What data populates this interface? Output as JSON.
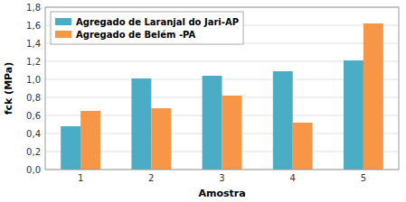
{
  "chart_data": {
    "type": "bar",
    "categories": [
      "1",
      "2",
      "3",
      "4",
      "5"
    ],
    "series": [
      {
        "name": "Agregado de Laranjal do Jari-AP",
        "color": "#4BACC6",
        "values": [
          0.48,
          1.01,
          1.04,
          1.09,
          1.21
        ]
      },
      {
        "name": "Agregado de Belém -PA",
        "color": "#F79646",
        "values": [
          0.65,
          0.68,
          0.82,
          0.52,
          1.62
        ]
      }
    ],
    "xlabel": "Amostra",
    "ylabel": "fck (MPa)",
    "ylim": [
      0.0,
      1.8
    ],
    "yticks": [
      {
        "value": 0.0,
        "label": "0,0"
      },
      {
        "value": 0.2,
        "label": "0,2"
      },
      {
        "value": 0.4,
        "label": "0,4"
      },
      {
        "value": 0.6,
        "label": "0,6"
      },
      {
        "value": 0.8,
        "label": "0,8"
      },
      {
        "value": 1.0,
        "label": "1,0"
      },
      {
        "value": 1.2,
        "label": "1,2"
      },
      {
        "value": 1.4,
        "label": "1,4"
      },
      {
        "value": 1.6,
        "label": "1,6"
      },
      {
        "value": 1.8,
        "label": "1,8"
      }
    ],
    "grid": true,
    "legend": "upper left"
  }
}
